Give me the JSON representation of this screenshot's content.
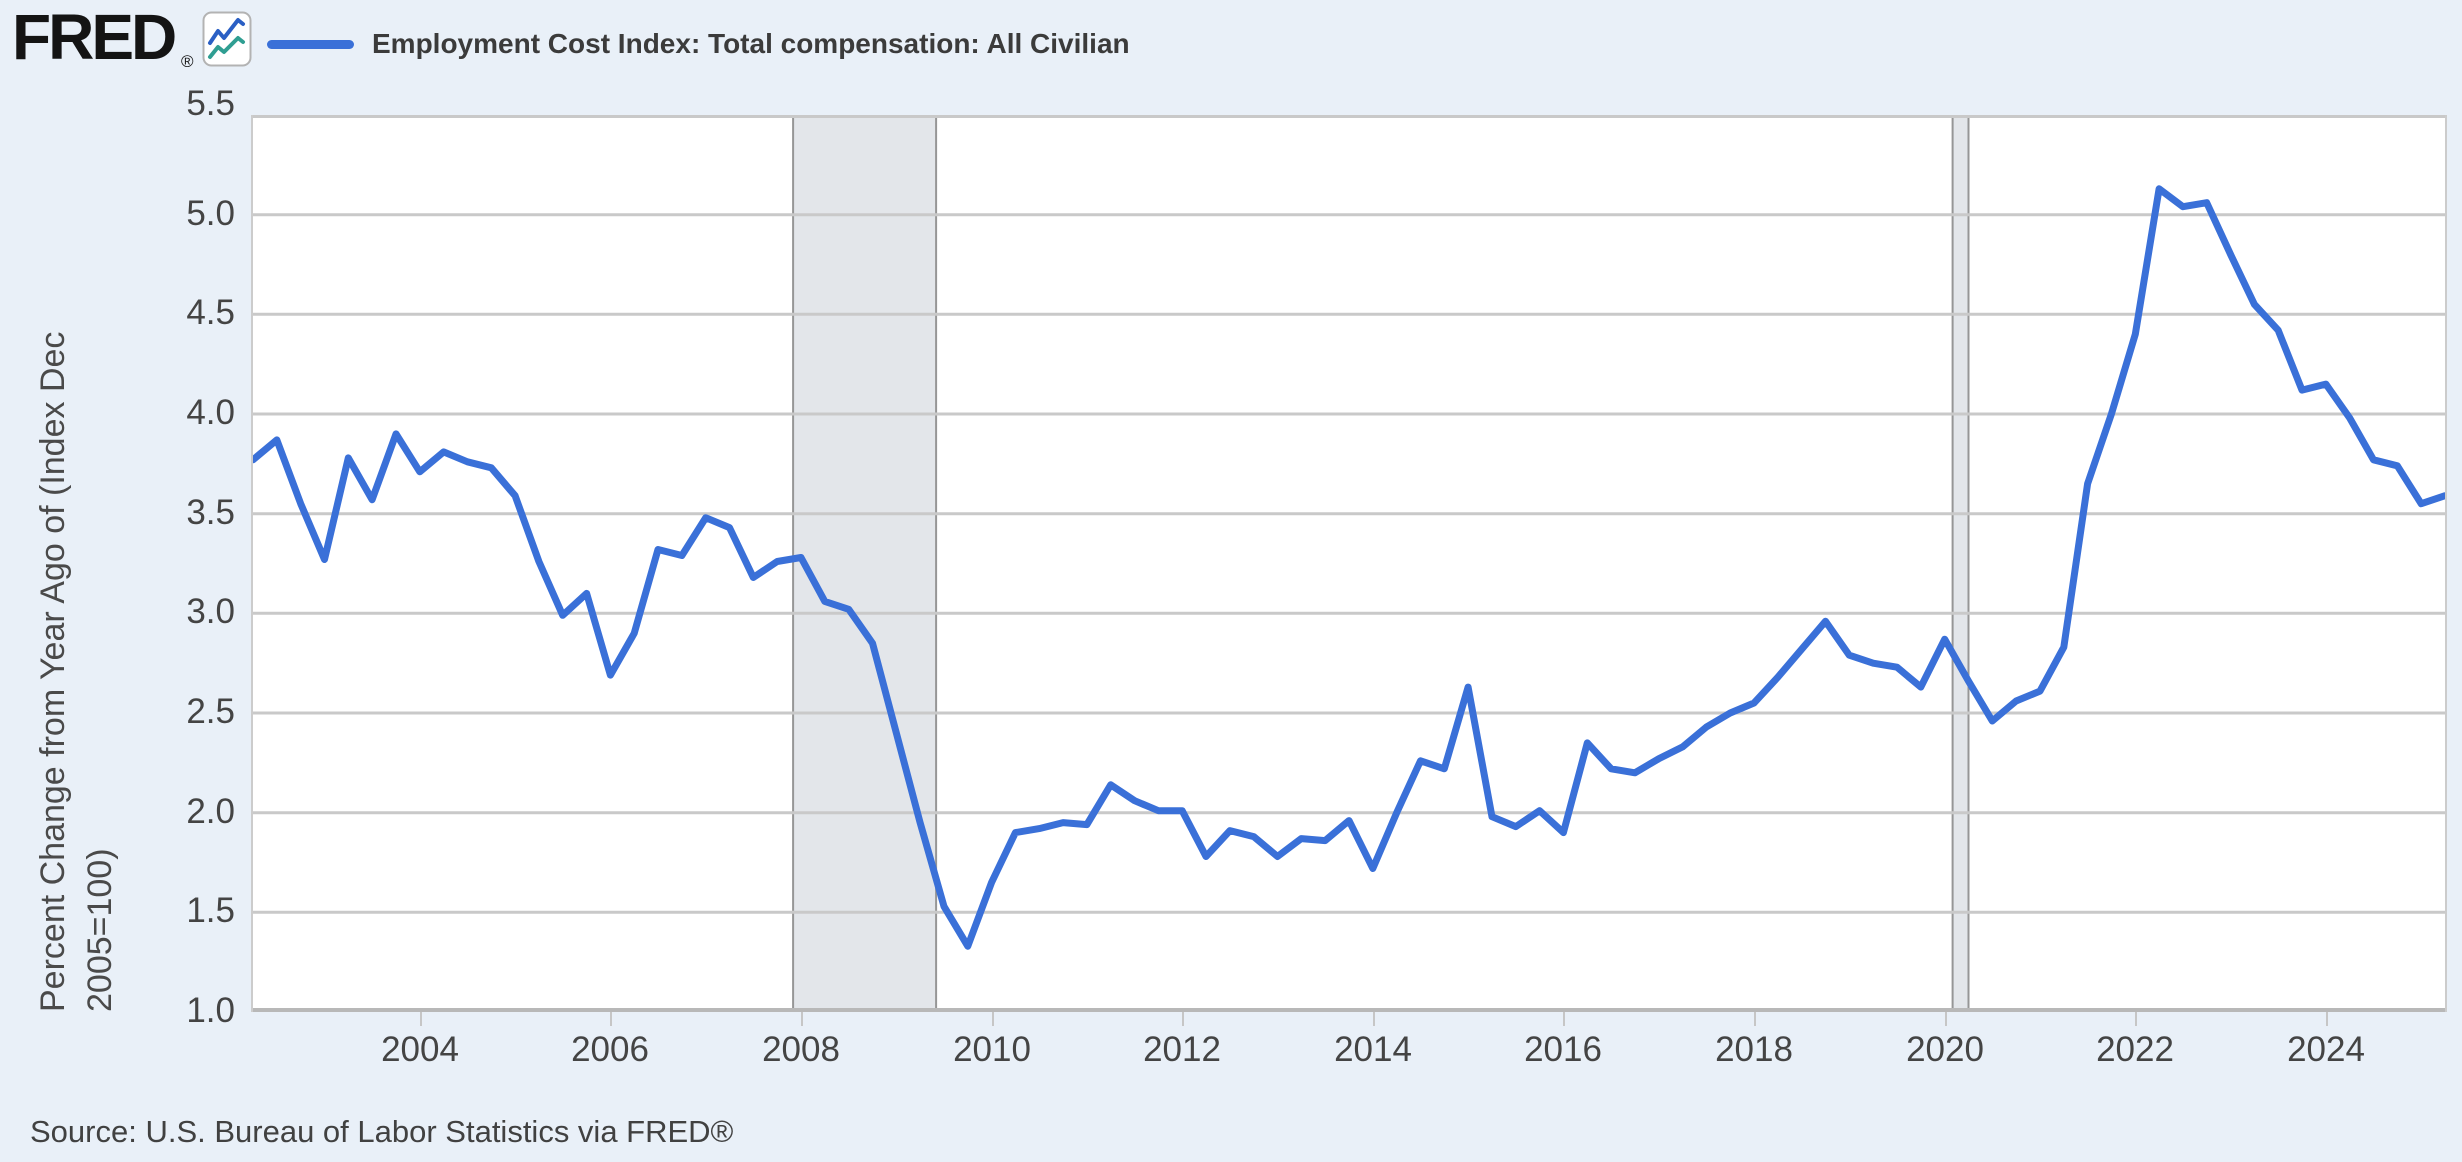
{
  "header": {
    "logo_text": "FRED",
    "logo_registered": "®",
    "icon": "line-chart-icon",
    "series_title": "Employment Cost Index: Total compensation: All Civilian"
  },
  "footer": {
    "source_text": "Source: U.S. Bureau of Labor Statistics via FRED®"
  },
  "y_axis": {
    "label_line1": "Percent Change from Year Ago of (Index Dec",
    "label_line2": "2005=100)",
    "tick_labels": [
      "5.5",
      "5.0",
      "4.5",
      "4.0",
      "3.5",
      "3.0",
      "2.5",
      "2.0",
      "1.5",
      "1.0"
    ]
  },
  "x_axis": {
    "tick_labels": [
      "2004",
      "2006",
      "2008",
      "2010",
      "2012",
      "2014",
      "2016",
      "2018",
      "2020",
      "2022",
      "2024"
    ]
  },
  "colors": {
    "background": "#e9f0f8",
    "plot_background": "#ffffff",
    "line": "#3a70d8",
    "grid": "#c9c9c9",
    "grid_bottom": "#b8b8b8",
    "recession_fill": "#e3e6ea",
    "recession_border": "#969696",
    "tick_text": "#444444",
    "title_text": "#3b3b3b",
    "logo_icon_blue": "#2a5fc4",
    "logo_icon_teal": "#2f9e92"
  },
  "chart_data": {
    "type": "line",
    "title": "Employment Cost Index: Total compensation: All Civilian",
    "series_name": "Employment Cost Index: Total compensation: All Civilian",
    "xlabel": "",
    "ylabel": "Percent Change from Year Ago of (Index Dec 2005=100)",
    "ylim": [
      1.0,
      5.5
    ],
    "xlim": [
      2002.25,
      2025.25
    ],
    "y_ticks": [
      5.5,
      5.0,
      4.5,
      4.0,
      3.5,
      3.0,
      2.5,
      2.0,
      1.5,
      1.0
    ],
    "x_tick_years": [
      2004,
      2006,
      2008,
      2010,
      2012,
      2014,
      2016,
      2018,
      2020,
      2022,
      2024
    ],
    "grid": "horizontal",
    "legend_position": "top-left",
    "frequency": "quarterly",
    "period_start": "2002 Q2",
    "period_end": "2025 Q2",
    "recession_bands": [
      [
        2007.917,
        2009.417
      ],
      [
        2020.083,
        2020.25
      ]
    ],
    "x": [
      2002.25,
      2002.5,
      2002.75,
      2003.0,
      2003.25,
      2003.5,
      2003.75,
      2004.0,
      2004.25,
      2004.5,
      2004.75,
      2005.0,
      2005.25,
      2005.5,
      2005.75,
      2006.0,
      2006.25,
      2006.5,
      2006.75,
      2007.0,
      2007.25,
      2007.5,
      2007.75,
      2008.0,
      2008.25,
      2008.5,
      2008.75,
      2009.0,
      2009.25,
      2009.5,
      2009.75,
      2010.0,
      2010.25,
      2010.5,
      2010.75,
      2011.0,
      2011.25,
      2011.5,
      2011.75,
      2012.0,
      2012.25,
      2012.5,
      2012.75,
      2013.0,
      2013.25,
      2013.5,
      2013.75,
      2014.0,
      2014.25,
      2014.5,
      2014.75,
      2015.0,
      2015.25,
      2015.5,
      2015.75,
      2016.0,
      2016.25,
      2016.5,
      2016.75,
      2017.0,
      2017.25,
      2017.5,
      2017.75,
      2018.0,
      2018.25,
      2018.5,
      2018.75,
      2019.0,
      2019.25,
      2019.5,
      2019.75,
      2020.0,
      2020.25,
      2020.5,
      2020.75,
      2021.0,
      2021.25,
      2021.5,
      2021.75,
      2022.0,
      2022.25,
      2022.5,
      2022.75,
      2023.0,
      2023.25,
      2023.5,
      2023.75,
      2024.0,
      2024.25,
      2024.5,
      2024.75,
      2025.0,
      2025.25
    ],
    "values": [
      3.77,
      3.87,
      3.55,
      3.27,
      3.78,
      3.57,
      3.9,
      3.71,
      3.81,
      3.76,
      3.73,
      3.59,
      3.26,
      2.99,
      3.1,
      2.69,
      2.9,
      3.32,
      3.29,
      3.48,
      3.43,
      3.18,
      3.26,
      3.28,
      3.06,
      3.02,
      2.85,
      2.4,
      1.95,
      1.53,
      1.33,
      1.65,
      1.9,
      1.92,
      1.95,
      1.94,
      2.14,
      2.06,
      2.01,
      2.01,
      1.78,
      1.91,
      1.88,
      1.78,
      1.87,
      1.86,
      1.96,
      1.72,
      2.0,
      2.26,
      2.22,
      2.63,
      1.98,
      1.93,
      2.01,
      1.9,
      2.35,
      2.22,
      2.2,
      2.27,
      2.33,
      2.43,
      2.5,
      2.55,
      2.68,
      2.82,
      2.96,
      2.79,
      2.75,
      2.73,
      2.63,
      2.87,
      2.66,
      2.46,
      2.56,
      2.61,
      2.83,
      3.65,
      4.0,
      4.4,
      5.13,
      5.04,
      5.06,
      4.8,
      4.55,
      4.42,
      4.12,
      4.15,
      3.98,
      3.77,
      3.74,
      3.55,
      3.59
    ]
  }
}
